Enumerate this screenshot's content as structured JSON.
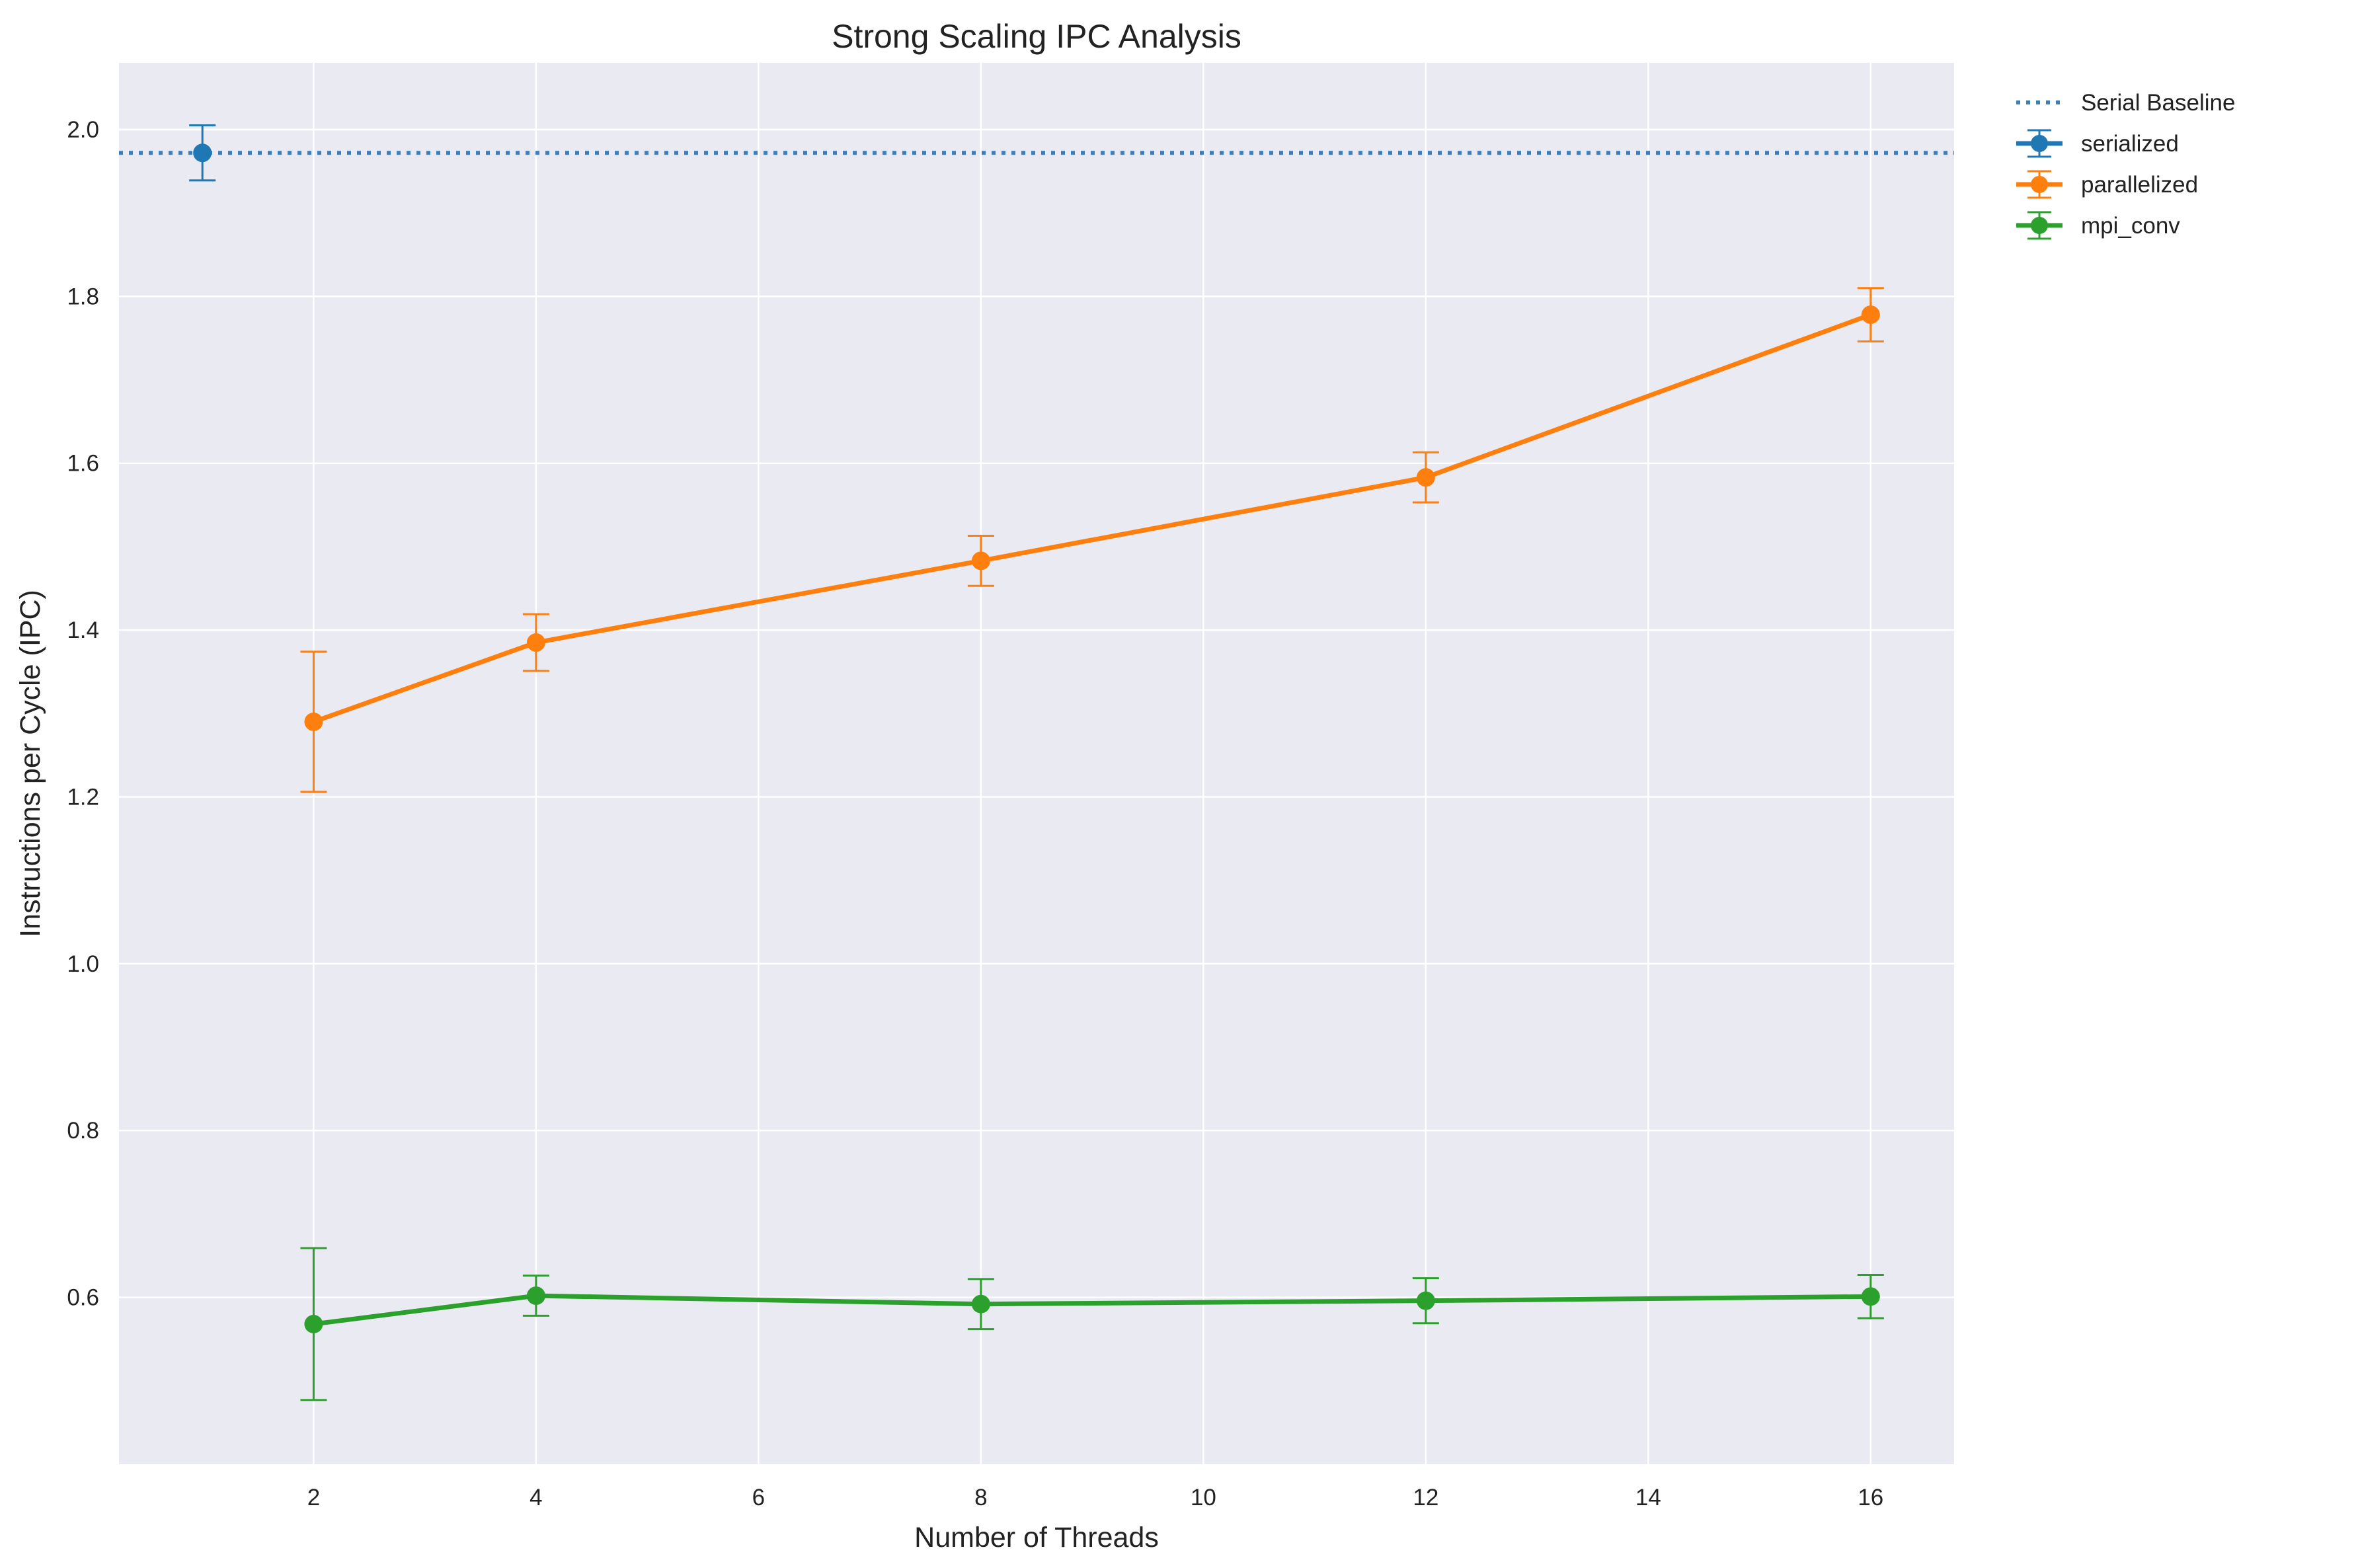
{
  "chart_data": {
    "type": "line",
    "title": "Strong Scaling IPC Analysis",
    "xlabel": "Number of Threads",
    "ylabel": "Instructions per Cycle (IPC)",
    "xlim": [
      0.25,
      16.75
    ],
    "ylim": [
      0.4,
      2.08
    ],
    "xticks": [
      2,
      4,
      6,
      8,
      10,
      12,
      14,
      16
    ],
    "yticks": [
      0.6,
      0.8,
      1.0,
      1.2,
      1.4,
      1.6,
      1.8,
      2.0
    ],
    "xtick_labels": [
      "2",
      "4",
      "6",
      "8",
      "10",
      "12",
      "14",
      "16"
    ],
    "ytick_labels": [
      "0.6",
      "0.8",
      "1.0",
      "1.2",
      "1.4",
      "1.6",
      "1.8",
      "2.0"
    ],
    "grid": true,
    "legend_position": "outside-top-right",
    "background_color": "#eaeaf2",
    "baseline": {
      "name": "Serial Baseline",
      "y": 1.972,
      "color": "#3a7ebf",
      "style": "dotted"
    },
    "series": [
      {
        "name": "serialized",
        "color": "#1f77b4",
        "x": [
          1
        ],
        "y": [
          1.972
        ],
        "err": [
          0.033
        ]
      },
      {
        "name": "parallelized",
        "color": "#ff7f0e",
        "x": [
          2,
          4,
          8,
          12,
          16
        ],
        "y": [
          1.29,
          1.385,
          1.483,
          1.583,
          1.778
        ],
        "err": [
          0.084,
          0.034,
          0.03,
          0.03,
          0.032
        ]
      },
      {
        "name": "mpi_conv",
        "color": "#2ca02c",
        "x": [
          2,
          4,
          8,
          12,
          16
        ],
        "y": [
          0.568,
          0.602,
          0.592,
          0.596,
          0.601
        ],
        "err": [
          0.091,
          0.024,
          0.03,
          0.027,
          0.026
        ]
      }
    ]
  }
}
